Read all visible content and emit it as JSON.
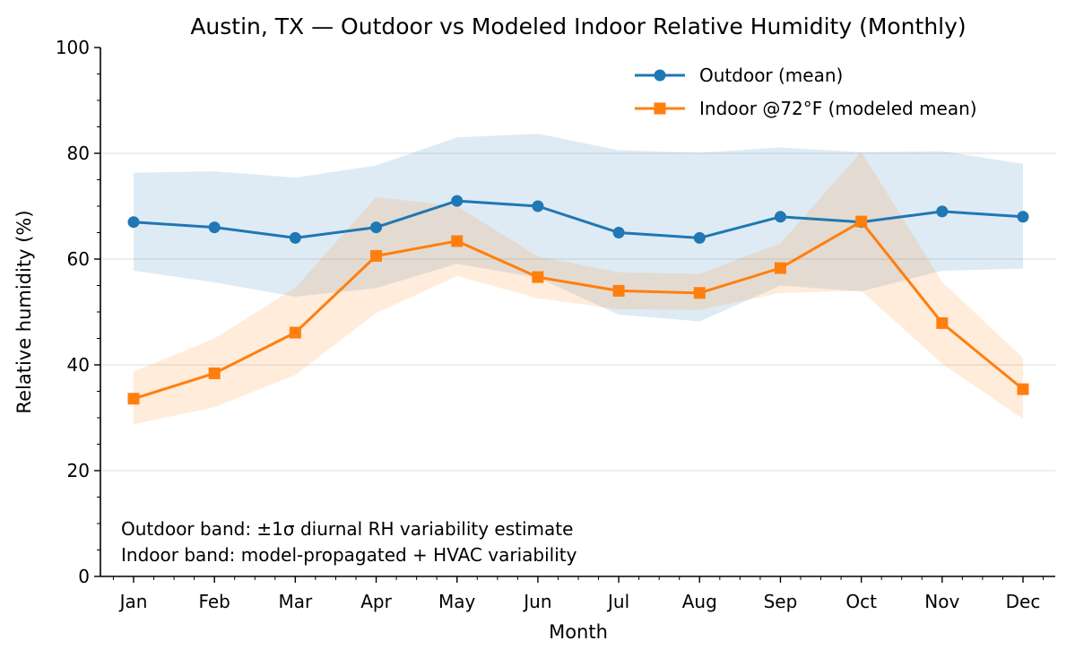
{
  "chart_data": {
    "type": "line",
    "title": "Austin, TX — Outdoor vs Modeled Indoor Relative Humidity (Monthly)",
    "xlabel": "Month",
    "ylabel": "Relative humidity (%)",
    "ylim": [
      0,
      100
    ],
    "yticks": [
      0,
      20,
      40,
      60,
      80,
      100
    ],
    "grid": "horizontal",
    "legend_position": "top-right",
    "categories": [
      "Jan",
      "Feb",
      "Mar",
      "Apr",
      "May",
      "Jun",
      "Jul",
      "Aug",
      "Sep",
      "Oct",
      "Nov",
      "Dec"
    ],
    "series": [
      {
        "name": "Outdoor (mean)",
        "color": "#1f77b4",
        "marker": "circle",
        "values": [
          67,
          66,
          64,
          66,
          71,
          70,
          65,
          64,
          68,
          67,
          69,
          68
        ],
        "band_upper": [
          76.3,
          76.6,
          75.4,
          77.7,
          83.0,
          83.7,
          80.6,
          80.1,
          81.1,
          80.2,
          80.4,
          78.0
        ],
        "band_lower": [
          57.8,
          55.6,
          52.9,
          54.5,
          59.1,
          56.5,
          49.5,
          48.2,
          55.0,
          53.9,
          57.8,
          58.2
        ]
      },
      {
        "name": "Indoor @72°F (modeled mean)",
        "color": "#ff7f0e",
        "marker": "square",
        "values": [
          33.6,
          38.4,
          46.1,
          60.6,
          63.4,
          56.6,
          54.0,
          53.6,
          58.3,
          67.1,
          47.9,
          35.4
        ],
        "band_upper": [
          38.7,
          45.0,
          54.6,
          71.7,
          70.0,
          60.5,
          57.5,
          57.2,
          63.0,
          80.3,
          55.7,
          41.3
        ],
        "band_lower": [
          28.8,
          32.0,
          38.1,
          49.8,
          56.8,
          52.6,
          50.5,
          50.4,
          53.6,
          54.0,
          40.2,
          29.8
        ]
      }
    ],
    "annotations": [
      "Outdoor band: ±1σ diurnal RH variability estimate",
      "Indoor band: model-propagated + HVAC variability"
    ]
  }
}
